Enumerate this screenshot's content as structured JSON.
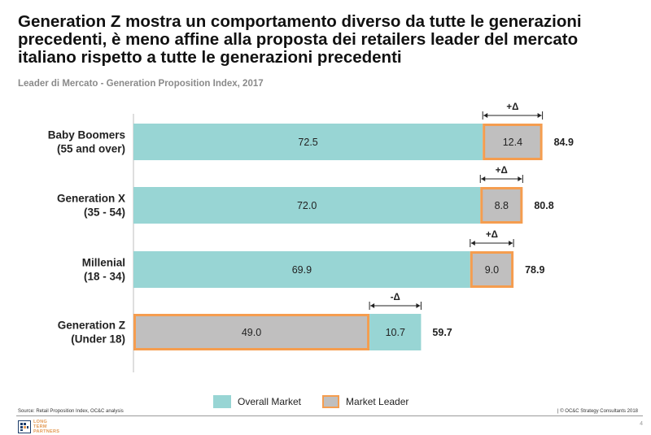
{
  "title": "Generation Z mostra un comportamento diverso da tutte le generazioni precedenti, è meno affine alla proposta dei retailers leader del mercato italiano rispetto a tutte le generazioni precedenti",
  "subtitle": "Leader di Mercato - Generation Proposition Index, 2017",
  "source": "Source: Retail Proposition Index, OC&C analysis",
  "copyright": "| © OC&C Strategy Consultants 2018",
  "page_number": "4",
  "logo": {
    "line1": "LONG",
    "line2": "TERM",
    "line3": "PARTNERS"
  },
  "colors": {
    "overall": "#98d5d4",
    "leader": "#c0bfbf",
    "leader_border": "#f59d4f"
  },
  "legend": {
    "overall": "Overall Market",
    "leader": "Market Leader"
  },
  "chart_data": {
    "type": "bar",
    "orientation": "horizontal-stacked",
    "categories": [
      {
        "line1": "Baby Boomers",
        "line2": "(55 and over)"
      },
      {
        "line1": "Generation X",
        "line2": "(35 - 54)"
      },
      {
        "line1": "Millenial",
        "line2": "(18 - 34)"
      },
      {
        "line1": "Generation Z",
        "line2": "(Under 18)"
      }
    ],
    "series": [
      {
        "name": "Overall Market",
        "values": [
          72.5,
          72.0,
          69.9,
          10.7
        ]
      },
      {
        "name": "Market Leader",
        "values": [
          12.4,
          8.8,
          9.0,
          49.0
        ]
      }
    ],
    "segment_order": [
      [
        "Overall Market",
        "Market Leader"
      ],
      [
        "Overall Market",
        "Market Leader"
      ],
      [
        "Overall Market",
        "Market Leader"
      ],
      [
        "Market Leader",
        "Overall Market"
      ]
    ],
    "totals": [
      84.9,
      80.8,
      78.9,
      59.7
    ],
    "delta_labels": [
      "+Δ",
      "+Δ",
      "+Δ",
      "-Δ"
    ],
    "xlim": [
      0,
      100
    ]
  }
}
